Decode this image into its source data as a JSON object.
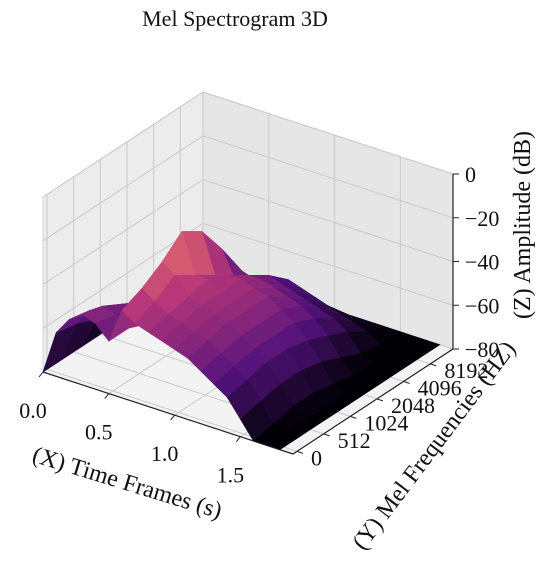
{
  "chart_data": {
    "type": "surface3d",
    "title": "Mel Spectrogram 3D",
    "xlabel": "(X)  Time Frames (s)",
    "ylabel": "(Y)  Mel Frequencies (HZ)",
    "zlabel": "(Z)  Amplitude (dB)",
    "x_ticks": [
      "0.0",
      "0.5",
      "1.0",
      "1.5"
    ],
    "y_ticks": [
      "0",
      "512",
      "1024",
      "2048",
      "4096",
      "8192"
    ],
    "z_ticks": [
      "0",
      "−20",
      "−40",
      "−60",
      "−80"
    ],
    "xlim": [
      0.0,
      1.9
    ],
    "ylim": [
      0,
      128
    ],
    "zlim": [
      -80,
      0
    ],
    "colormap": "magma",
    "grid": true,
    "pane_color": "#ececec",
    "time_s": [
      0.0,
      0.1,
      0.2,
      0.3,
      0.4,
      0.5,
      0.6,
      0.7,
      0.8,
      0.9,
      1.0,
      1.1,
      1.2,
      1.3,
      1.4,
      1.5,
      1.6,
      1.7,
      1.8
    ],
    "mel_bands": [
      0,
      16,
      32,
      48,
      64,
      80,
      96,
      112,
      128
    ],
    "amplitude_db": [
      [
        -80,
        -80,
        -80,
        -80,
        -80,
        -80,
        -80,
        -80,
        -80
      ],
      [
        -60,
        -62,
        -66,
        -72,
        -78,
        -80,
        -80,
        -80,
        -80
      ],
      [
        -52,
        -54,
        -58,
        -64,
        -72,
        -80,
        -80,
        -80,
        -80
      ],
      [
        -48,
        -50,
        -55,
        -60,
        -70,
        -78,
        -80,
        -80,
        -80
      ],
      [
        -50,
        -52,
        -56,
        -62,
        -70,
        -78,
        -80,
        -80,
        -80
      ],
      [
        -56,
        -56,
        -60,
        -66,
        -74,
        -80,
        -80,
        -80,
        -80
      ],
      [
        -40,
        -36,
        -30,
        -22,
        -28,
        -42,
        -58,
        -72,
        -80
      ],
      [
        -44,
        -40,
        -34,
        -40,
        -46,
        -54,
        -60,
        -70,
        -80
      ],
      [
        -46,
        -44,
        -42,
        -40,
        -44,
        -50,
        -56,
        -64,
        -80
      ],
      [
        -48,
        -46,
        -44,
        -44,
        -44,
        -50,
        -58,
        -66,
        -80
      ],
      [
        -50,
        -48,
        -46,
        -46,
        -46,
        -52,
        -60,
        -68,
        -80
      ],
      [
        -52,
        -50,
        -48,
        -48,
        -48,
        -54,
        -62,
        -70,
        -80
      ],
      [
        -56,
        -54,
        -52,
        -52,
        -52,
        -56,
        -64,
        -72,
        -80
      ],
      [
        -60,
        -58,
        -56,
        -56,
        -56,
        -60,
        -66,
        -74,
        -80
      ],
      [
        -64,
        -62,
        -60,
        -60,
        -62,
        -66,
        -70,
        -76,
        -80
      ],
      [
        -72,
        -70,
        -68,
        -68,
        -70,
        -74,
        -78,
        -80,
        -80
      ],
      [
        -80,
        -78,
        -76,
        -76,
        -78,
        -80,
        -80,
        -80,
        -80
      ],
      [
        -80,
        -80,
        -80,
        -80,
        -80,
        -80,
        -80,
        -80,
        -80
      ],
      [
        -80,
        -80,
        -80,
        -80,
        -80,
        -80,
        -80,
        -80,
        -80
      ]
    ]
  }
}
